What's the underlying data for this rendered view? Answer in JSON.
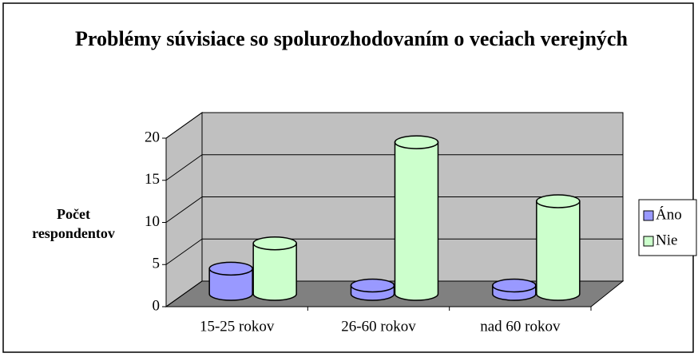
{
  "chart_data": {
    "type": "bar",
    "title": "Problémy súvisiace so spolurozhodovaním o veciach verejných",
    "y_label": "Počet respondentov",
    "categories": [
      "15-25 rokov",
      "26-60 rokov",
      "nad 60 rokov"
    ],
    "series": [
      {
        "name": "Áno",
        "color": "#9999ff",
        "values": [
          3,
          1,
          1
        ]
      },
      {
        "name": "Nie",
        "color": "#ccffcc",
        "values": [
          6,
          18,
          11
        ]
      }
    ],
    "ylim": [
      0,
      20
    ],
    "yticks": [
      0,
      5,
      10,
      15,
      20
    ],
    "grid": true,
    "legend": "right"
  }
}
